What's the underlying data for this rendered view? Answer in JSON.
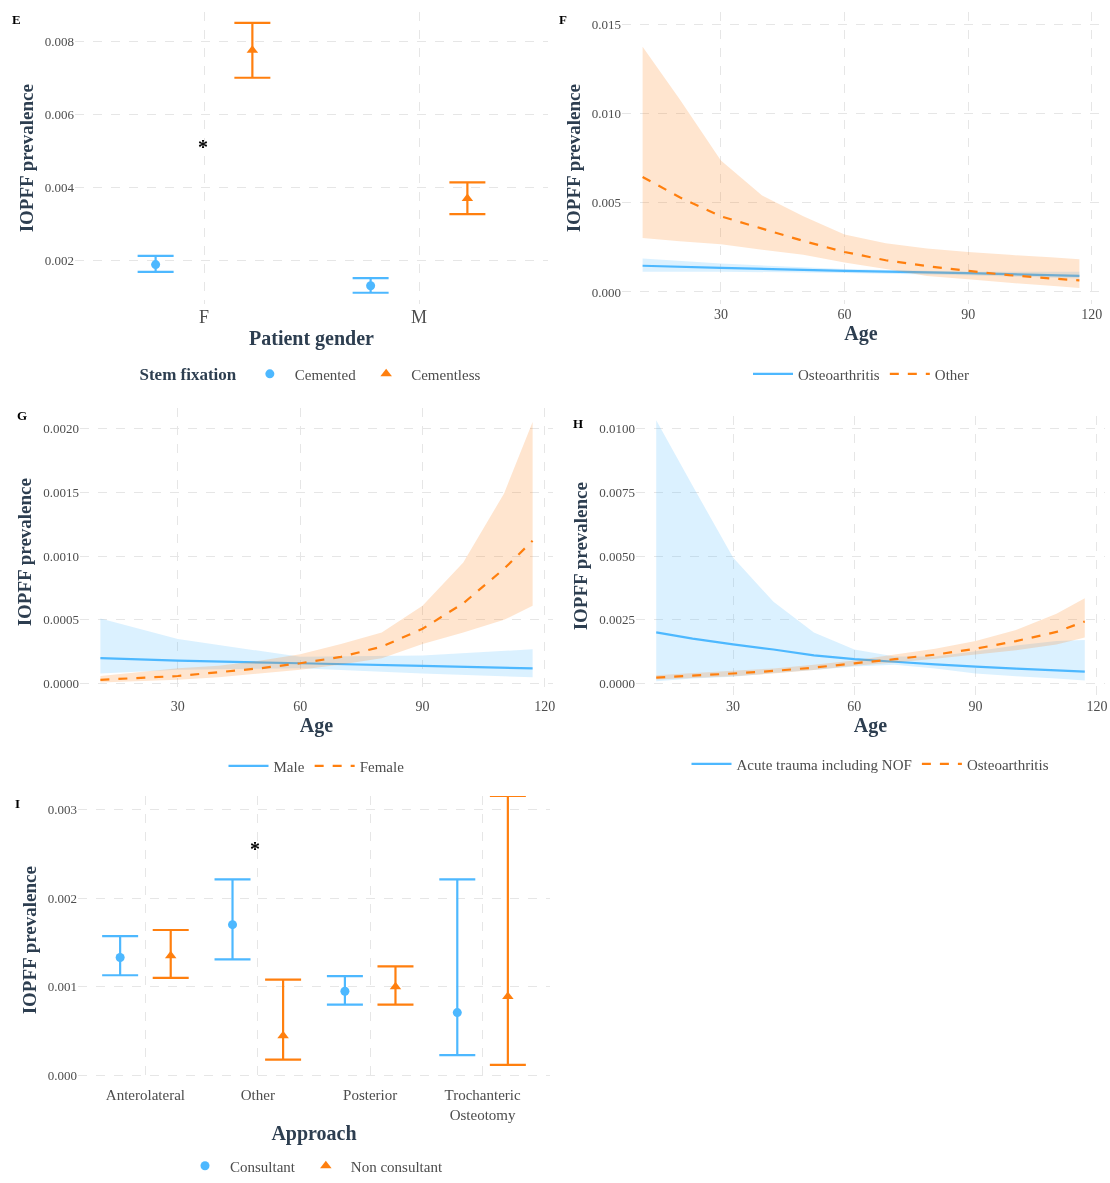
{
  "chart_data": [
    {
      "type": "scatter",
      "title": "E",
      "xlabel": "Patient gender",
      "ylabel": "IOPFF prevalence",
      "legend_title": "Stem fixation",
      "categories": [
        "F",
        "M"
      ],
      "series": [
        {
          "name": "Cemented",
          "color": "#4db8ff",
          "marker": "circle",
          "values": [
            0.00189,
            0.00131
          ],
          "errors": [
            [
              0.00169,
              0.00213
            ],
            [
              0.00112,
              0.00152
            ]
          ]
        },
        {
          "name": "Cementless",
          "color": "#ff7f0e",
          "marker": "triangle",
          "values": [
            0.00775,
            0.0037
          ],
          "errors": [
            [
              0.007,
              0.0085
            ],
            [
              0.00327,
              0.00414
            ]
          ]
        }
      ],
      "ylim": [
        0.0008,
        0.0088
      ],
      "yticks": [
        0.002,
        0.004,
        0.006,
        0.008
      ],
      "grid": true,
      "legend": "bottom",
      "annotations": [
        "*"
      ]
    },
    {
      "type": "line",
      "title": "F",
      "xlabel": "Age",
      "ylabel": "IOPFF prevalence",
      "series": [
        {
          "name": "Osteoarthritis",
          "color": "#4db8ff",
          "line_style": "solid",
          "x": [
            11,
            30,
            60,
            90,
            117
          ],
          "values": [
            0.00147,
            0.00135,
            0.00118,
            0.00106,
            0.0009
          ],
          "lower": [
            0.00114,
            0.00114,
            0.00106,
            0.00094,
            0.00076
          ],
          "upper": [
            0.00188,
            0.00159,
            0.00129,
            0.00114,
            0.00114
          ]
        },
        {
          "name": "Other",
          "color": "#ff7f0e",
          "line_style": "dashed",
          "x": [
            11,
            20,
            30,
            40,
            50,
            60,
            70,
            80,
            90,
            100,
            110,
            117
          ],
          "values": [
            0.00645,
            0.00531,
            0.00424,
            0.00355,
            0.00286,
            0.00224,
            0.00178,
            0.00145,
            0.00118,
            0.00094,
            0.00076,
            0.00065
          ],
          "lower": [
            0.00302,
            0.00284,
            0.00267,
            0.00237,
            0.00208,
            0.00165,
            0.00129,
            0.0009,
            0.00071,
            0.00051,
            0.00035,
            0.00022
          ],
          "upper": [
            0.01375,
            0.0108,
            0.00737,
            0.00541,
            0.00424,
            0.00322,
            0.00273,
            0.00243,
            0.00224,
            0.00208,
            0.00194,
            0.00184
          ]
        }
      ],
      "xlim": [
        6,
        122
      ],
      "xticks": [
        30,
        60,
        90,
        120
      ],
      "ylim": [
        -0.0007,
        0.0157
      ],
      "yticks": [
        {
          "value": 0,
          "label": "0.000"
        },
        {
          "value": 0.005,
          "label": "0.005"
        },
        {
          "value": 0.01,
          "label": "0.010"
        },
        {
          "value": 0.015,
          "label": "0.015"
        }
      ],
      "grid": true,
      "legend": "bottom"
    },
    {
      "type": "line",
      "title": "G",
      "xlabel": "Age",
      "ylabel": "IOPFF prevalence",
      "series": [
        {
          "name": "Male",
          "color": "#4db8ff",
          "line_style": "solid",
          "x": [
            11,
            30,
            60,
            90,
            117
          ],
          "values": [
            0.0002,
            0.00018,
            0.00016,
            0.00014,
            0.00012
          ],
          "lower": [
            8e-05,
            0.00011,
            0.00012,
            8e-05,
            5e-05
          ],
          "upper": [
            0.00051,
            0.00035,
            0.00021,
            0.00022,
            0.00027
          ]
        },
        {
          "name": "Female",
          "color": "#ff7f0e",
          "line_style": "dashed",
          "x": [
            11,
            30,
            40,
            50,
            60,
            70,
            80,
            90,
            100,
            110,
            117
          ],
          "values": [
            3e-05,
            6e-05,
            9e-05,
            0.00012,
            0.00016,
            0.00021,
            0.00029,
            0.00043,
            0.00063,
            0.0009,
            0.00112
          ],
          "lower": [
            1e-05,
            3e-05,
            5e-05,
            8e-05,
            0.00011,
            0.00015,
            0.0002,
            0.00031,
            0.0004,
            0.0005,
            0.00061
          ],
          "upper": [
            6e-05,
            0.00012,
            0.00014,
            0.00018,
            0.00023,
            0.00031,
            0.0004,
            0.00061,
            0.00095,
            0.00149,
            0.00205
          ]
        }
      ],
      "xlim": [
        6,
        122
      ],
      "xticks": [
        30,
        60,
        90,
        120
      ],
      "ylim": [
        -0.0001,
        0.00216
      ],
      "yticks": [
        {
          "value": 0,
          "label": "0.0000"
        },
        {
          "value": 0.0005,
          "label": "0.0005"
        },
        {
          "value": 0.001,
          "label": "0.0010"
        },
        {
          "value": 0.0015,
          "label": "0.0015"
        },
        {
          "value": 0.002,
          "label": "0.0020"
        }
      ],
      "grid": true,
      "legend": "bottom"
    },
    {
      "type": "line",
      "title": "H",
      "xlabel": "Age",
      "ylabel": "IOPFF prevalence",
      "series": [
        {
          "name": "Acute trauma including NOF",
          "color": "#4db8ff",
          "line_style": "solid",
          "x": [
            11,
            20,
            30,
            40,
            50,
            60,
            70,
            80,
            90,
            100,
            110,
            117
          ],
          "values": [
            0.00201,
            0.00177,
            0.00154,
            0.00134,
            0.00111,
            0.00096,
            0.00086,
            0.00076,
            0.00067,
            0.00059,
            0.00052,
            0.00047
          ],
          "lower": [
            0.0001,
            0.0002,
            0.00027,
            0.00042,
            0.00054,
            0.00067,
            0.00074,
            0.0006,
            0.0004,
            0.00029,
            0.0002,
            0.00013
          ],
          "upper": [
            0.01033,
            0.00776,
            0.00495,
            0.00321,
            0.00201,
            0.00134,
            0.00107,
            0.00107,
            0.00127,
            0.0015,
            0.00167,
            0.00171
          ]
        },
        {
          "name": "Osteoarthritis",
          "color": "#ff7f0e",
          "line_style": "dashed",
          "x": [
            11,
            30,
            40,
            50,
            60,
            70,
            80,
            90,
            100,
            110,
            117
          ],
          "values": [
            0.00024,
            0.0004,
            0.0005,
            0.00063,
            0.0008,
            0.00096,
            0.00114,
            0.00137,
            0.00167,
            0.00203,
            0.00244
          ],
          "lower": [
            0.00016,
            0.00029,
            0.0004,
            0.00054,
            0.0007,
            0.00083,
            0.00098,
            0.00114,
            0.00131,
            0.00154,
            0.00181
          ],
          "upper": [
            0.00033,
            0.00051,
            0.0006,
            0.00074,
            0.00091,
            0.00114,
            0.00137,
            0.00167,
            0.00211,
            0.00274,
            0.00335
          ]
        }
      ],
      "xlim": [
        6,
        122
      ],
      "xticks": [
        30,
        60,
        90,
        120
      ],
      "ylim": [
        -0.0005,
        0.0105
      ],
      "yticks": [
        {
          "value": 0,
          "label": "0.0000"
        },
        {
          "value": 0.0025,
          "label": "0.0025"
        },
        {
          "value": 0.005,
          "label": "0.0050"
        },
        {
          "value": 0.0075,
          "label": "0.0075"
        },
        {
          "value": 0.01,
          "label": "0.0100"
        }
      ],
      "grid": true,
      "legend": "bottom"
    },
    {
      "type": "scatter",
      "title": "I",
      "xlabel": "Approach",
      "ylabel": "IOPFF prevalence",
      "categories": [
        "Anterolateral",
        "Other",
        "Posterior",
        "Trochanteric Osteotomy"
      ],
      "series": [
        {
          "name": "Consultant",
          "color": "#4db8ff",
          "marker": "circle",
          "values": [
            0.00133,
            0.0017,
            0.00095,
            0.00071
          ],
          "errors": [
            [
              0.00113,
              0.00157
            ],
            [
              0.00131,
              0.00221
            ],
            [
              0.0008,
              0.00112
            ],
            [
              0.00023,
              0.00221
            ]
          ]
        },
        {
          "name": "Non consultant",
          "color": "#ff7f0e",
          "marker": "triangle",
          "values": [
            0.00135,
            0.00045,
            0.001,
            0.00089
          ],
          "errors": [
            [
              0.0011,
              0.00164
            ],
            [
              0.00018,
              0.00108
            ],
            [
              0.0008,
              0.00123
            ],
            [
              0.00012,
              0.00315
            ]
          ]
        }
      ],
      "ylim": [
        -0.0001,
        0.00315
      ],
      "yticks": [
        {
          "value": 0,
          "label": "0.000"
        },
        0.001,
        0.002,
        0.003
      ],
      "grid": true,
      "legend": "bottom",
      "annotations": [
        "*"
      ]
    }
  ]
}
